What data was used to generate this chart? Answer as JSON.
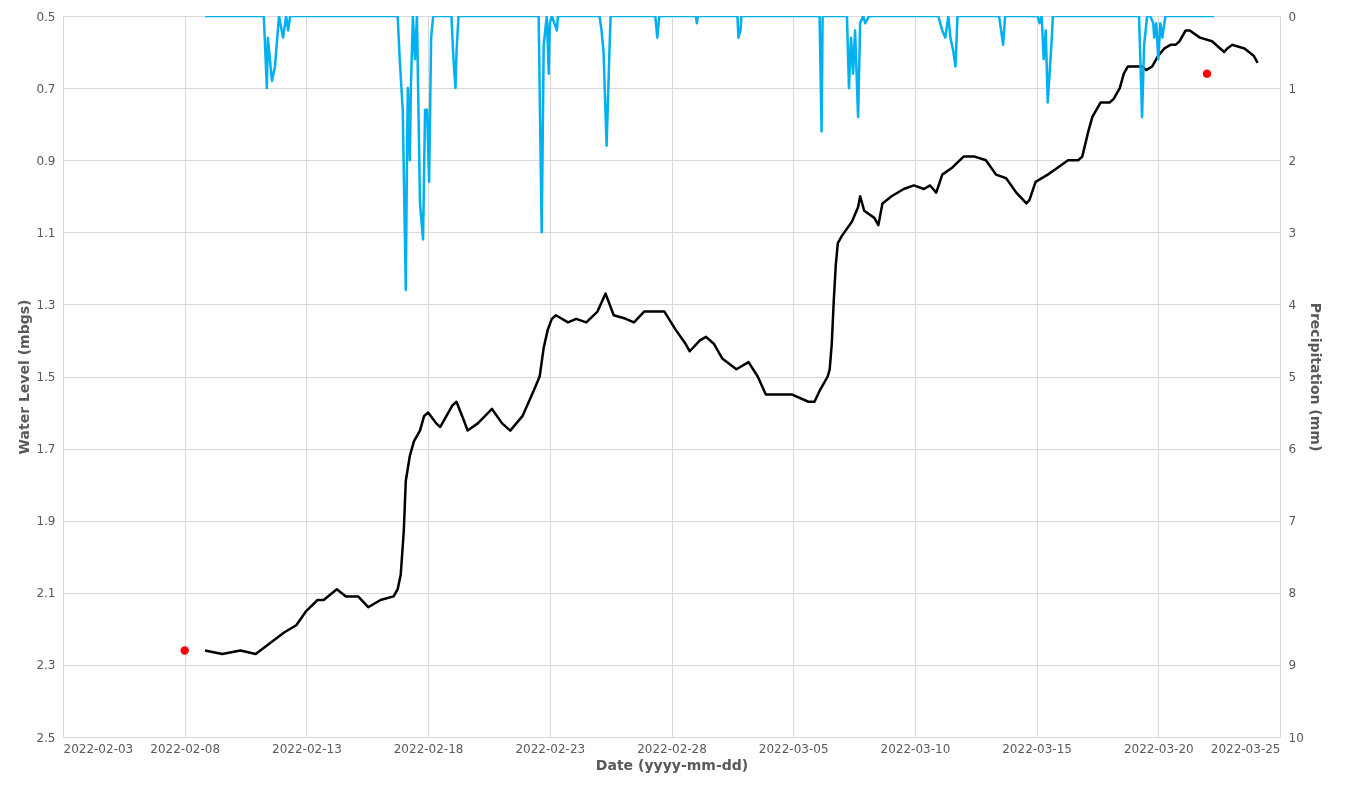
{
  "chart_data": {
    "type": "line",
    "xlabel": "Date (yyyy-mm-dd)",
    "ylabel": "Water Level (mbgs)",
    "y2label": "Precipitation (mm)",
    "xlim": [
      "2022-02-03",
      "2022-03-25"
    ],
    "xticks": [
      {
        "value": "2022-02-03",
        "label": "2022-02-03"
      },
      {
        "value": "2022-02-08",
        "label": "2022-02-08"
      },
      {
        "value": "2022-02-13",
        "label": "2022-02-13"
      },
      {
        "value": "2022-02-18",
        "label": "2022-02-18"
      },
      {
        "value": "2022-02-23",
        "label": "2022-02-23"
      },
      {
        "value": "2022-02-28",
        "label": "2022-02-28"
      },
      {
        "value": "2022-03-05",
        "label": "2022-03-05"
      },
      {
        "value": "2022-03-10",
        "label": "2022-03-10"
      },
      {
        "value": "2022-03-15",
        "label": "2022-03-15"
      },
      {
        "value": "2022-03-20",
        "label": "2022-03-20"
      },
      {
        "value": "2022-03-25",
        "label": "2022-03-25"
      }
    ],
    "ylim": [
      2.5,
      0.5
    ],
    "yticks": [
      0.5,
      0.7,
      0.9,
      1.1,
      1.3,
      1.5,
      1.7,
      1.9,
      2.1,
      2.3,
      2.5
    ],
    "y2lim": [
      10,
      0
    ],
    "y2ticks": [
      0,
      1,
      2,
      3,
      4,
      5,
      6,
      7,
      8,
      9,
      10
    ],
    "grid": true,
    "series": [
      {
        "color": "#000000",
        "x": [
          "2022-02-08T20:00",
          "2022-02-09T13:00",
          "2022-02-10T07:00",
          "2022-02-10T22:00",
          "2022-02-11T12:00",
          "2022-02-12T02:00",
          "2022-02-12T14:00",
          "2022-02-13T00:00",
          "2022-02-13T11:00",
          "2022-02-13T17:00",
          "2022-02-14T06:00",
          "2022-02-14T15:00",
          "2022-02-15T03:00",
          "2022-02-15T13:00",
          "2022-02-16T01:00",
          "2022-02-16T14:00",
          "2022-02-16T18:00",
          "2022-02-16T21:00",
          "2022-02-17T00:00",
          "2022-02-17T02:00",
          "2022-02-17T06:00",
          "2022-02-17T10:00",
          "2022-02-17T16:00",
          "2022-02-17T20:00",
          "2022-02-18T00:00",
          "2022-02-18T08:00",
          "2022-02-18T12:00",
          "2022-02-19T00:00",
          "2022-02-19T04:00",
          "2022-02-19T11:00",
          "2022-02-19T15:00",
          "2022-02-20T01:00",
          "2022-02-20T15:00",
          "2022-02-21T01:00",
          "2022-02-21T09:00",
          "2022-02-21T21:00",
          "2022-02-22T08:00",
          "2022-02-22T14:00",
          "2022-02-22T18:00",
          "2022-02-22T22:00",
          "2022-02-23T02:00",
          "2022-02-23T06:00",
          "2022-02-23T18:00",
          "2022-02-24T02:00",
          "2022-02-24T12:00",
          "2022-02-24T23:00",
          "2022-02-25T07:00",
          "2022-02-25T15:00",
          "2022-02-26T03:00",
          "2022-02-26T11:00",
          "2022-02-26T21:00",
          "2022-02-27T09:00",
          "2022-02-27T17:00",
          "2022-02-28T04:00",
          "2022-02-28T14:00",
          "2022-02-28T18:00",
          "2022-03-01T04:00",
          "2022-03-01T10:00",
          "2022-03-01T18:00",
          "2022-03-02T02:00",
          "2022-03-02T16:00",
          "2022-03-03T04:00",
          "2022-03-03T13:00",
          "2022-03-03T21:00",
          "2022-03-04T11:00",
          "2022-03-04T23:00",
          "2022-03-05T15:00",
          "2022-03-05T21:00",
          "2022-03-06T02:00",
          "2022-03-06T10:00",
          "2022-03-06T12:00",
          "2022-03-06T14:00",
          "2022-03-06T16:00",
          "2022-03-06T18:00",
          "2022-03-06T20:00",
          "2022-03-07T00:00",
          "2022-03-07T10:00",
          "2022-03-07T16:00",
          "2022-03-07T18:00",
          "2022-03-07T22:00",
          "2022-03-08T08:00",
          "2022-03-08T12:00",
          "2022-03-08T16:00",
          "2022-03-09T01:00",
          "2022-03-09T13:00",
          "2022-03-09T23:00",
          "2022-03-10T09:00",
          "2022-03-10T15:00",
          "2022-03-10T21:00",
          "2022-03-11T03:00",
          "2022-03-11T13:00",
          "2022-03-12T00:00",
          "2022-03-12T11:00",
          "2022-03-12T22:00",
          "2022-03-13T08:00",
          "2022-03-13T18:00",
          "2022-03-14T04:00",
          "2022-03-14T14:00",
          "2022-03-14T17:00",
          "2022-03-14T23:00",
          "2022-03-15T11:00",
          "2022-03-15T21:00",
          "2022-03-16T07:00",
          "2022-03-16T17:00",
          "2022-03-16T21:00",
          "2022-03-17T03:00",
          "2022-03-17T07:00",
          "2022-03-17T15:00",
          "2022-03-17T18:00",
          "2022-03-18T00:00",
          "2022-03-18T04:00",
          "2022-03-18T10:00",
          "2022-03-18T14:00",
          "2022-03-18T18:00",
          "2022-03-19T08:00",
          "2022-03-19T12:00",
          "2022-03-19T18:00",
          "2022-03-20T00:00",
          "2022-03-20T06:00",
          "2022-03-20T12:00",
          "2022-03-20T17:00",
          "2022-03-20T21:00",
          "2022-03-21T03:00",
          "2022-03-21T07:00",
          "2022-03-21T17:00",
          "2022-03-22T05:00",
          "2022-03-22T13:00",
          "2022-03-22T17:00",
          "2022-03-22T20:00",
          "2022-03-23T01:00",
          "2022-03-23T13:00",
          "2022-03-23T22:00",
          "2022-03-24T02:00"
        ],
        "values": [
          2.26,
          2.27,
          2.26,
          2.27,
          2.24,
          2.21,
          2.19,
          2.15,
          2.12,
          2.12,
          2.09,
          2.11,
          2.11,
          2.14,
          2.12,
          2.11,
          2.09,
          2.05,
          1.93,
          1.79,
          1.72,
          1.68,
          1.65,
          1.61,
          1.6,
          1.63,
          1.64,
          1.58,
          1.57,
          1.62,
          1.65,
          1.63,
          1.59,
          1.63,
          1.65,
          1.61,
          1.54,
          1.5,
          1.42,
          1.37,
          1.34,
          1.33,
          1.35,
          1.34,
          1.35,
          1.32,
          1.27,
          1.33,
          1.34,
          1.35,
          1.32,
          1.32,
          1.32,
          1.37,
          1.41,
          1.43,
          1.4,
          1.39,
          1.41,
          1.45,
          1.48,
          1.46,
          1.5,
          1.55,
          1.55,
          1.55,
          1.57,
          1.57,
          1.54,
          1.5,
          1.48,
          1.41,
          1.29,
          1.19,
          1.13,
          1.11,
          1.07,
          1.03,
          1.0,
          1.04,
          1.06,
          1.08,
          1.02,
          1.0,
          0.98,
          0.97,
          0.98,
          0.97,
          0.99,
          0.94,
          0.92,
          0.89,
          0.89,
          0.9,
          0.94,
          0.95,
          0.99,
          1.02,
          1.01,
          0.96,
          0.94,
          0.92,
          0.9,
          0.9,
          0.89,
          0.82,
          0.78,
          0.74,
          0.74,
          0.74,
          0.73,
          0.7,
          0.66,
          0.64,
          0.64,
          0.65,
          0.64,
          0.61,
          0.59,
          0.58,
          0.58,
          0.57,
          0.54,
          0.54,
          0.56,
          0.57,
          0.59,
          0.6,
          0.59,
          0.58,
          0.59,
          0.61,
          0.63
        ]
      },
      {
        "type": "scatter",
        "color": "#ff0000",
        "x": [
          "2022-02-08T00:00",
          "2022-03-22T00:00"
        ],
        "values": [
          2.26,
          0.66
        ]
      },
      {
        "axis": "y2",
        "color": "#00b0f0",
        "x": [
          "2022-02-08T20:00",
          "2022-02-11T06:00",
          "2022-02-11T09:00",
          "2022-02-11T10:00",
          "2022-02-11T14:00",
          "2022-02-11T17:00",
          "2022-02-11T21:00",
          "2022-02-12T01:00",
          "2022-02-12T04:00",
          "2022-02-12T06:00",
          "2022-02-12T08:00",
          "2022-02-16T18:00",
          "2022-02-16T20:00",
          "2022-02-16T23:00",
          "2022-02-17T02:00",
          "2022-02-17T03:00",
          "2022-02-17T04:00",
          "2022-02-17T06:00",
          "2022-02-17T07:00",
          "2022-02-17T09:00",
          "2022-02-17T11:00",
          "2022-02-17T13:00",
          "2022-02-17T16:00",
          "2022-02-17T19:00",
          "2022-02-17T21:00",
          "2022-02-17T23:00",
          "2022-02-18T01:00",
          "2022-02-18T03:00",
          "2022-02-18T05:00",
          "2022-02-18T23:00",
          "2022-02-19T01:00",
          "2022-02-19T03:00",
          "2022-02-19T04:00",
          "2022-02-19T06:00",
          "2022-02-22T13:00",
          "2022-02-22T14:00",
          "2022-02-22T16:00",
          "2022-02-22T18:00",
          "2022-02-22T21:00",
          "2022-02-22T23:00",
          "2022-02-23T00:00",
          "2022-02-23T02:00",
          "2022-02-23T07:00",
          "2022-02-23T08:00",
          "2022-02-25T01:00",
          "2022-02-25T03:00",
          "2022-02-25T05:00",
          "2022-02-25T08:00",
          "2022-02-25T11:00",
          "2022-02-25T12:00",
          "2022-02-27T08:00",
          "2022-02-27T10:00",
          "2022-02-27T12:00",
          "2022-03-01T00:00",
          "2022-03-01T01:00",
          "2022-03-01T02:00",
          "2022-03-02T17:00",
          "2022-03-02T18:00",
          "2022-03-02T20:00",
          "2022-03-02T21:00",
          "2022-03-06T02:00",
          "2022-03-06T04:00",
          "2022-03-06T05:00",
          "2022-03-07T05:00",
          "2022-03-07T07:00",
          "2022-03-07T09:00",
          "2022-03-07T11:00",
          "2022-03-07T13:00",
          "2022-03-07T16:00",
          "2022-03-07T18:00",
          "2022-03-07T21:00",
          "2022-03-07T23:00",
          "2022-03-08T03:00",
          "2022-03-10T23:00",
          "2022-03-11T03:00",
          "2022-03-11T06:00",
          "2022-03-11T09:00",
          "2022-03-11T11:00",
          "2022-03-11T14:00",
          "2022-03-11T16:00",
          "2022-03-11T18:00",
          "2022-03-13T11:00",
          "2022-03-13T14:00",
          "2022-03-13T15:00",
          "2022-03-13T17:00",
          "2022-03-15T01:00",
          "2022-03-15T03:00",
          "2022-03-15T05:00",
          "2022-03-15T07:00",
          "2022-03-15T09:00",
          "2022-03-15T11:00",
          "2022-03-15T15:00",
          "2022-03-15T16:00",
          "2022-03-19T05:00",
          "2022-03-19T08:00",
          "2022-03-19T10:00",
          "2022-03-19T13:00",
          "2022-03-19T16:00",
          "2022-03-19T19:00",
          "2022-03-19T20:00",
          "2022-03-19T22:00",
          "2022-03-20T00:00",
          "2022-03-20T02:00",
          "2022-03-20T04:00",
          "2022-03-20T07:00",
          "2022-03-22T07:00"
        ],
        "values": [
          0,
          0,
          1.0,
          0.3,
          0.9,
          0.7,
          0,
          0.3,
          0,
          0.2,
          0,
          0,
          0.6,
          1.3,
          3.8,
          2.2,
          1.0,
          2.0,
          1.0,
          0,
          0.6,
          0,
          2.6,
          3.1,
          1.3,
          1.3,
          2.3,
          0.3,
          0,
          0,
          0.6,
          1.0,
          0.5,
          0,
          0,
          1.0,
          3.0,
          0.4,
          0,
          0.8,
          0.1,
          0,
          0.2,
          0,
          0,
          0.2,
          0.5,
          1.8,
          0.4,
          0,
          0,
          0.3,
          0,
          0,
          0.1,
          0,
          0,
          0.3,
          0.2,
          0,
          0,
          1.6,
          0,
          0,
          1.0,
          0.3,
          0.8,
          0.2,
          1.4,
          0.1,
          0,
          0.1,
          0,
          0,
          0.2,
          0.3,
          0,
          0.3,
          0.5,
          0.7,
          0,
          0,
          0.3,
          0.4,
          0,
          0,
          0.1,
          0,
          0.6,
          0.2,
          1.2,
          0.3,
          0,
          0,
          1.4,
          0.4,
          0,
          0,
          0.1,
          0.3,
          0.1,
          0.6,
          0.1,
          0.3,
          0,
          0
        ]
      }
    ]
  }
}
